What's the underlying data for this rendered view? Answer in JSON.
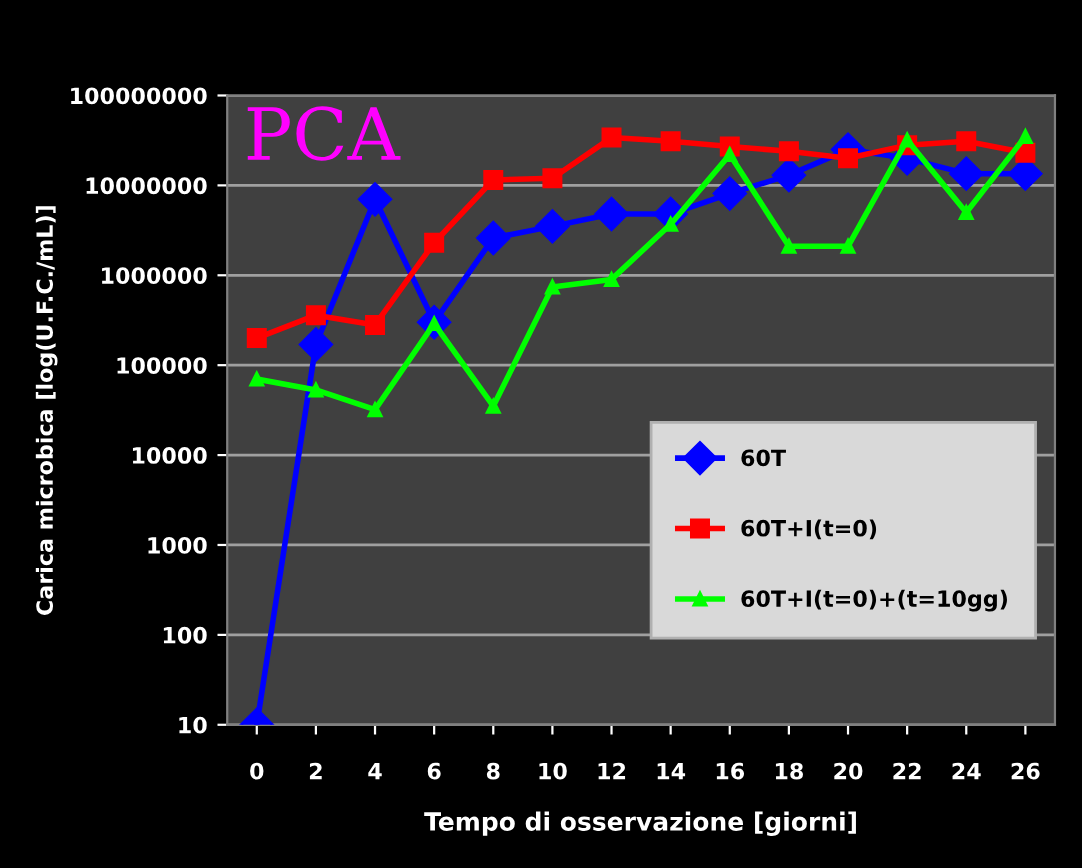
{
  "chart_data": {
    "type": "line",
    "xlabel": "Tempo di osservazione [giorni]",
    "ylabel": "Carica microbica [log(U.F.C./mL)]",
    "annotations": [
      "PCA"
    ],
    "x": [
      0,
      2,
      4,
      6,
      8,
      10,
      12,
      14,
      16,
      18,
      20,
      22,
      24,
      26
    ],
    "series": [
      {
        "name": "60T",
        "color": "#0000ff",
        "marker": "diamond",
        "values": [
          10,
          170000,
          7000000,
          300000,
          2600000,
          3500000,
          4800000,
          4800000,
          8100000,
          13000000,
          25000000,
          20000000,
          13500000,
          13500000
        ]
      },
      {
        "name": "60T+I(t=0)",
        "color": "#ff0000",
        "marker": "square",
        "values": [
          200000,
          360000,
          280000,
          2300000,
          11500000,
          12000000,
          34000000,
          31000000,
          27000000,
          24000000,
          20000000,
          28000000,
          31000000,
          23000000
        ]
      },
      {
        "name": "60T+I(t=0)+(t=10gg)",
        "color": "#00ff00",
        "marker": "triangle",
        "values": [
          70000,
          53000,
          32000,
          290000,
          35000,
          740000,
          900000,
          3700000,
          22000000,
          2100000,
          2100000,
          32000000,
          5000000,
          35000000
        ]
      }
    ],
    "log": "y",
    "xlim": [
      -1,
      27
    ],
    "ylim": [
      10,
      100000000
    ],
    "xticks": [
      0,
      2,
      4,
      6,
      8,
      10,
      12,
      14,
      16,
      18,
      20,
      22,
      24,
      26
    ],
    "yticks": [
      10,
      100,
      1000,
      10000,
      100000,
      1000000,
      10000000,
      100000000
    ],
    "grid": "y",
    "legend": "bottom right",
    "line_style": "solid"
  }
}
